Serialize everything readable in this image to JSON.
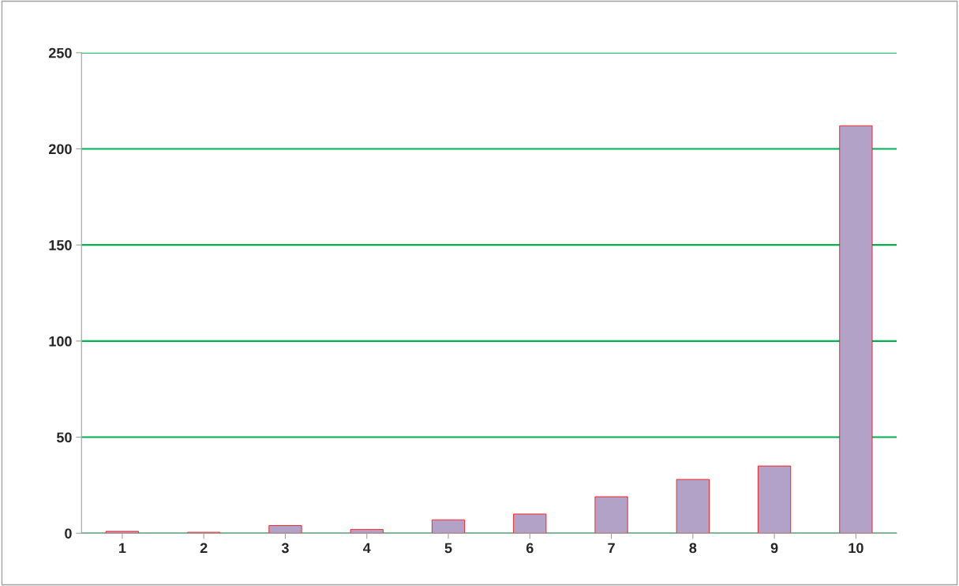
{
  "chart_data": {
    "type": "bar",
    "categories": [
      "1",
      "2",
      "3",
      "4",
      "5",
      "6",
      "7",
      "8",
      "9",
      "10"
    ],
    "series": [
      {
        "color": "#b3a2c7",
        "values": [
          1,
          0.5,
          4,
          2,
          7,
          10,
          19,
          28,
          35,
          212
        ]
      }
    ],
    "ylim": [
      0,
      250
    ],
    "yticks": [
      0,
      50,
      100,
      150,
      200,
      250
    ],
    "grid": "y"
  }
}
